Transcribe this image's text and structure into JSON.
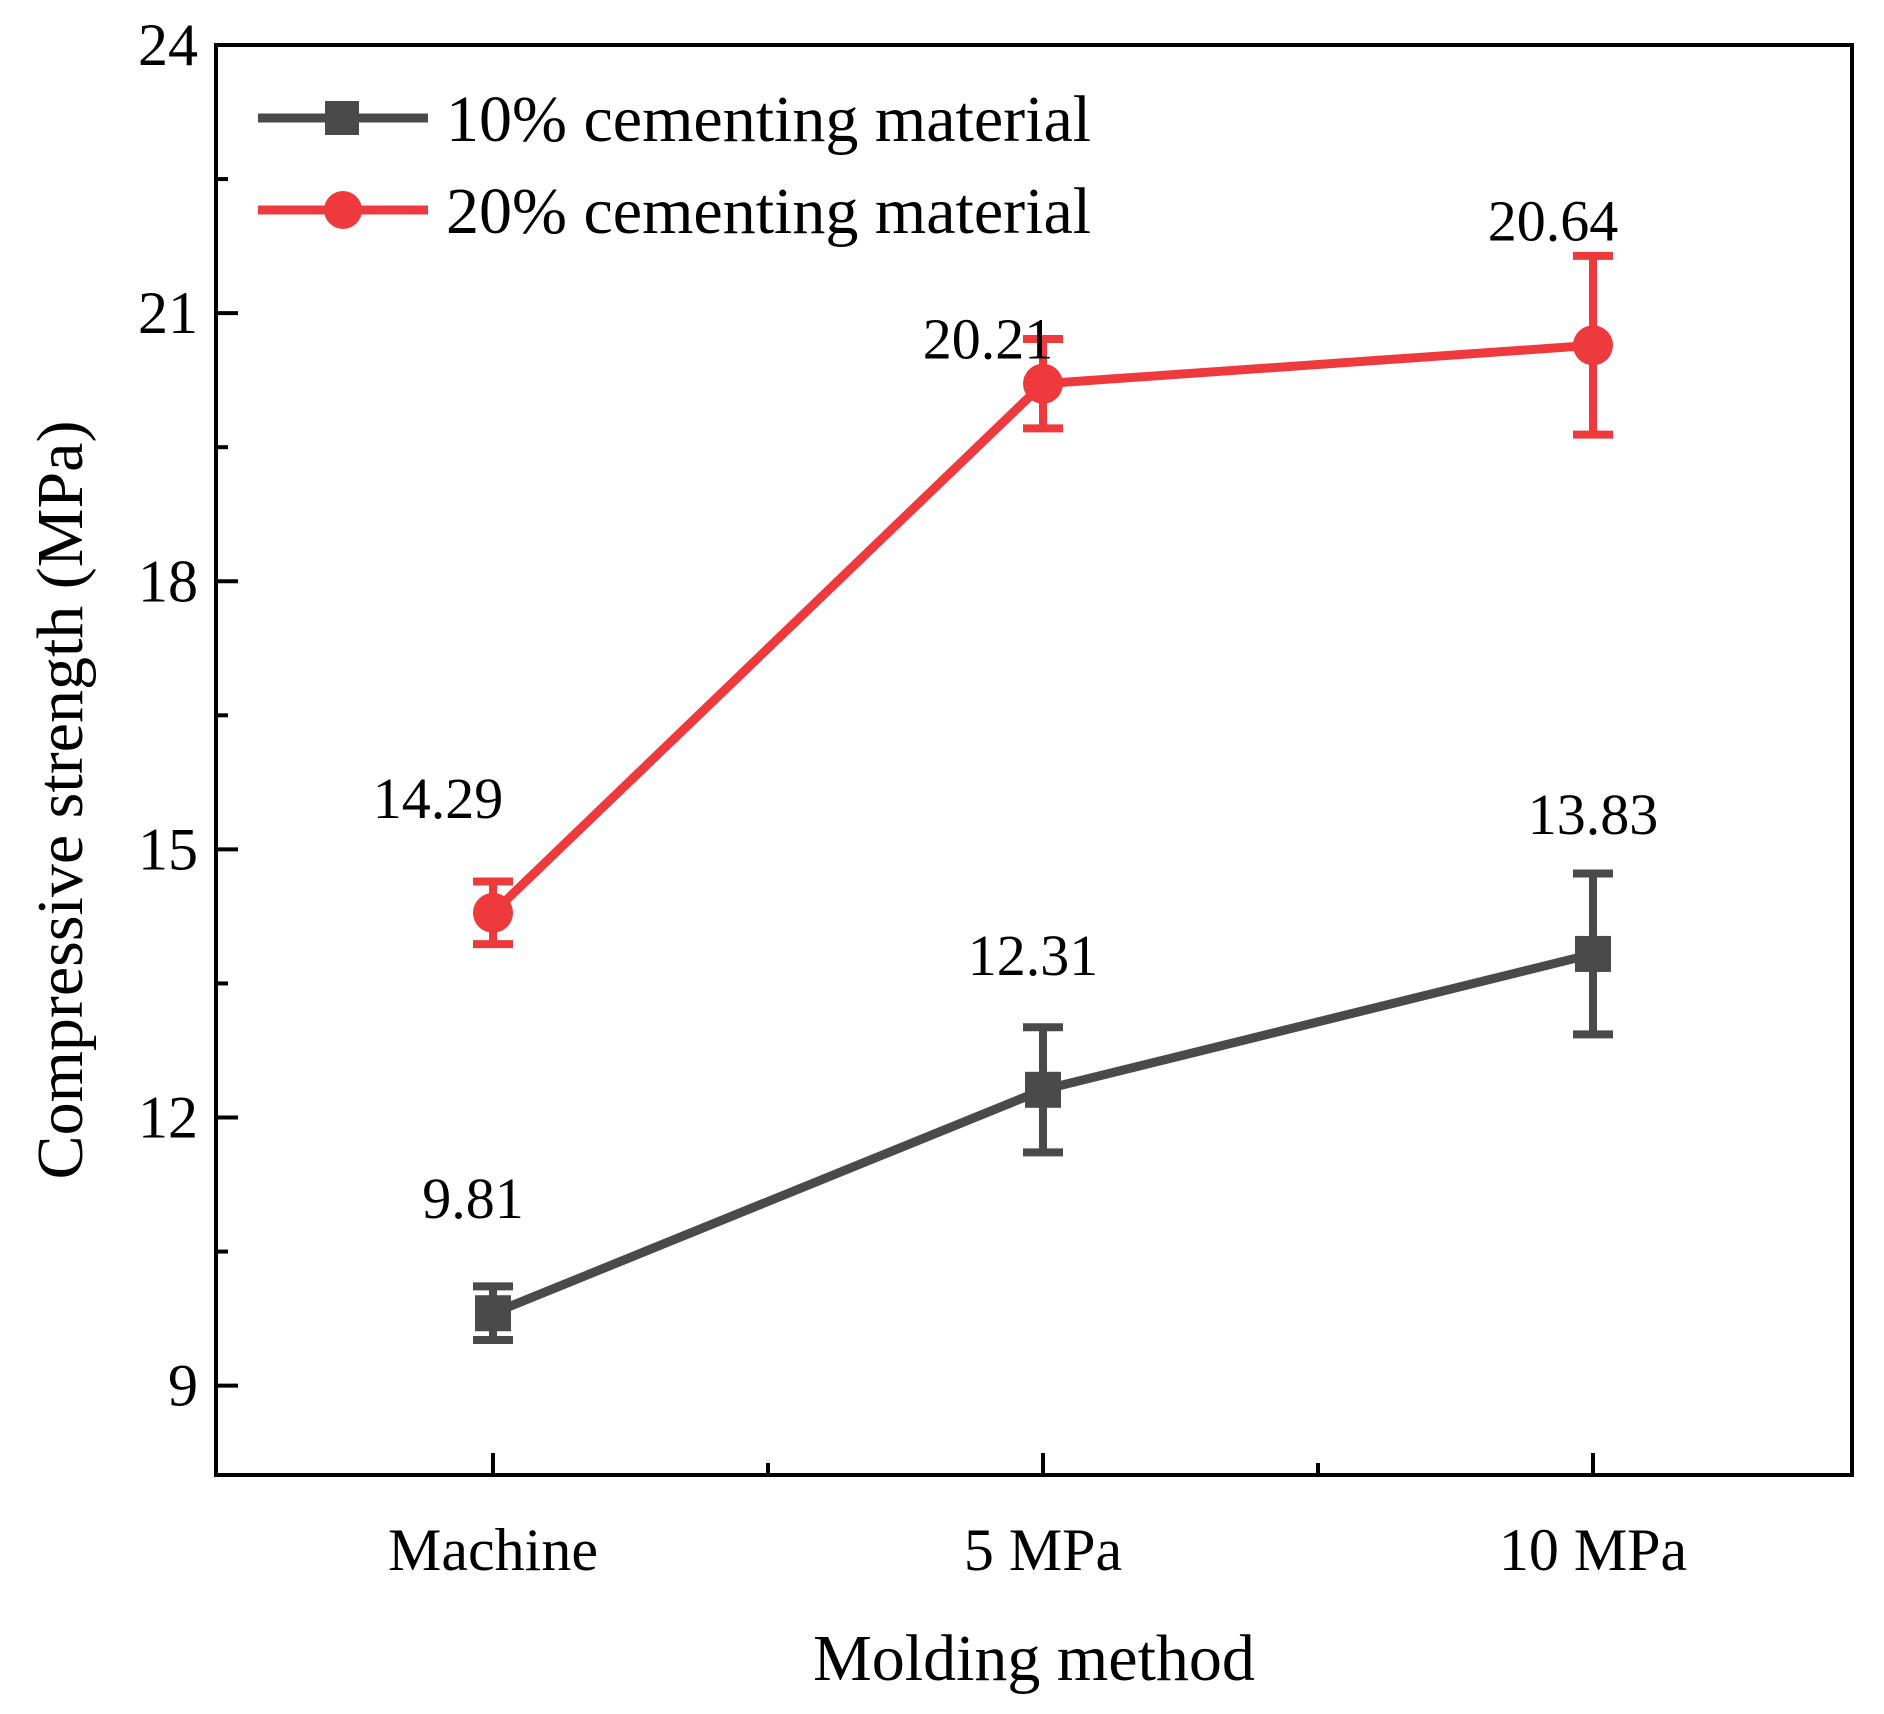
{
  "chart_data": {
    "type": "line",
    "title": "",
    "xlabel": "Molding method",
    "ylabel": "Compressive strength (MPa)",
    "categories": [
      "Machine",
      "5 MPa",
      "10 MPa"
    ],
    "ylim": [
      8,
      24
    ],
    "yticks": [
      9,
      12,
      15,
      18,
      21,
      24
    ],
    "ytick_labels": [
      "9",
      "12",
      "15",
      "18",
      "21",
      "24"
    ],
    "legend_position": "top-left",
    "grid": false,
    "series": [
      {
        "name": "10% cementing material",
        "color": "#4a4a4a",
        "marker": "square",
        "values": [
          9.81,
          12.31,
          13.83
        ],
        "errors": [
          0.3,
          0.7,
          0.9
        ],
        "labels": [
          "9.81",
          "12.31",
          "13.83"
        ]
      },
      {
        "name": "20% cementing material",
        "color": "#ee3a3c",
        "marker": "circle",
        "values": [
          14.29,
          20.21,
          20.64
        ],
        "errors": [
          0.35,
          0.5,
          1.0
        ],
        "labels": [
          "14.29",
          "20.21",
          "20.64"
        ]
      }
    ]
  }
}
